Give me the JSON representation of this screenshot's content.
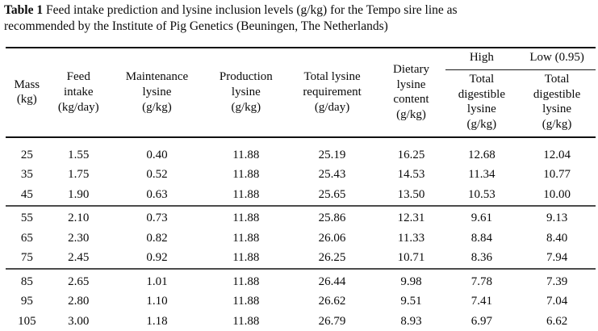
{
  "caption": {
    "label": "Table 1",
    "text": "Feed intake prediction and lysine inclusion levels (g/kg) for the Tempo sire line as\nrecommended by the Institute of Pig Genetics (Beuningen, The Netherlands)"
  },
  "table": {
    "group_headers": {
      "high": "High",
      "low": "Low (0.95)"
    },
    "columns": [
      "Mass\n(kg)",
      "Feed\nintake\n(kg/day)",
      "Maintenance\nlysine\n(g/kg)",
      "Production\nlysine\n(g/kg)",
      "Total lysine\nrequirement\n(g/day)",
      "Dietary\nlysine\ncontent\n(g/kg)",
      "Total\ndigestible\nlysine\n(g/kg)",
      "Total\ndigestible\nlysine\n(g/kg)"
    ],
    "row_groups": [
      [
        [
          "25",
          "1.55",
          "0.40",
          "11.88",
          "25.19",
          "16.25",
          "12.68",
          "12.04"
        ],
        [
          "35",
          "1.75",
          "0.52",
          "11.88",
          "25.43",
          "14.53",
          "11.34",
          "10.77"
        ],
        [
          "45",
          "1.90",
          "0.63",
          "11.88",
          "25.65",
          "13.50",
          "10.53",
          "10.00"
        ]
      ],
      [
        [
          "55",
          "2.10",
          "0.73",
          "11.88",
          "25.86",
          "12.31",
          "9.61",
          "9.13"
        ],
        [
          "65",
          "2.30",
          "0.82",
          "11.88",
          "26.06",
          "11.33",
          "8.84",
          "8.40"
        ],
        [
          "75",
          "2.45",
          "0.92",
          "11.88",
          "26.25",
          "10.71",
          "8.36",
          "7.94"
        ]
      ],
      [
        [
          "85",
          "2.65",
          "1.01",
          "11.88",
          "26.44",
          "9.98",
          "7.78",
          "7.39"
        ],
        [
          "95",
          "2.80",
          "1.10",
          "11.88",
          "26.62",
          "9.51",
          "7.41",
          "7.04"
        ],
        [
          "105",
          "3.00",
          "1.18",
          "11.88",
          "26.79",
          "8.93",
          "6.97",
          "6.62"
        ]
      ]
    ],
    "text_color": "#0a0a0a",
    "rule_color": "#111111"
  }
}
